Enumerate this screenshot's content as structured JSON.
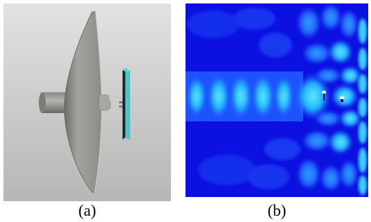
{
  "figure": {
    "panels": [
      {
        "id": "a",
        "caption": "(a)",
        "content": "reflector-antenna-3d-model",
        "colors": {
          "background_light": "#dcdcdc",
          "background_dark": "#b8b8b8",
          "dish": "#9c9c96",
          "dish_shadow": "#6f6f6a",
          "feed_plate": "#1c2a38",
          "feed_plate_edge": "#48c8c8"
        }
      },
      {
        "id": "b",
        "caption": "(b)",
        "content": "electric-field-distribution-map",
        "colors": {
          "field_low": "#0a0ae6",
          "field_mid": "#1e5cff",
          "field_high": "#22c8ff",
          "field_peak": "#7cf0ff"
        }
      }
    ]
  }
}
